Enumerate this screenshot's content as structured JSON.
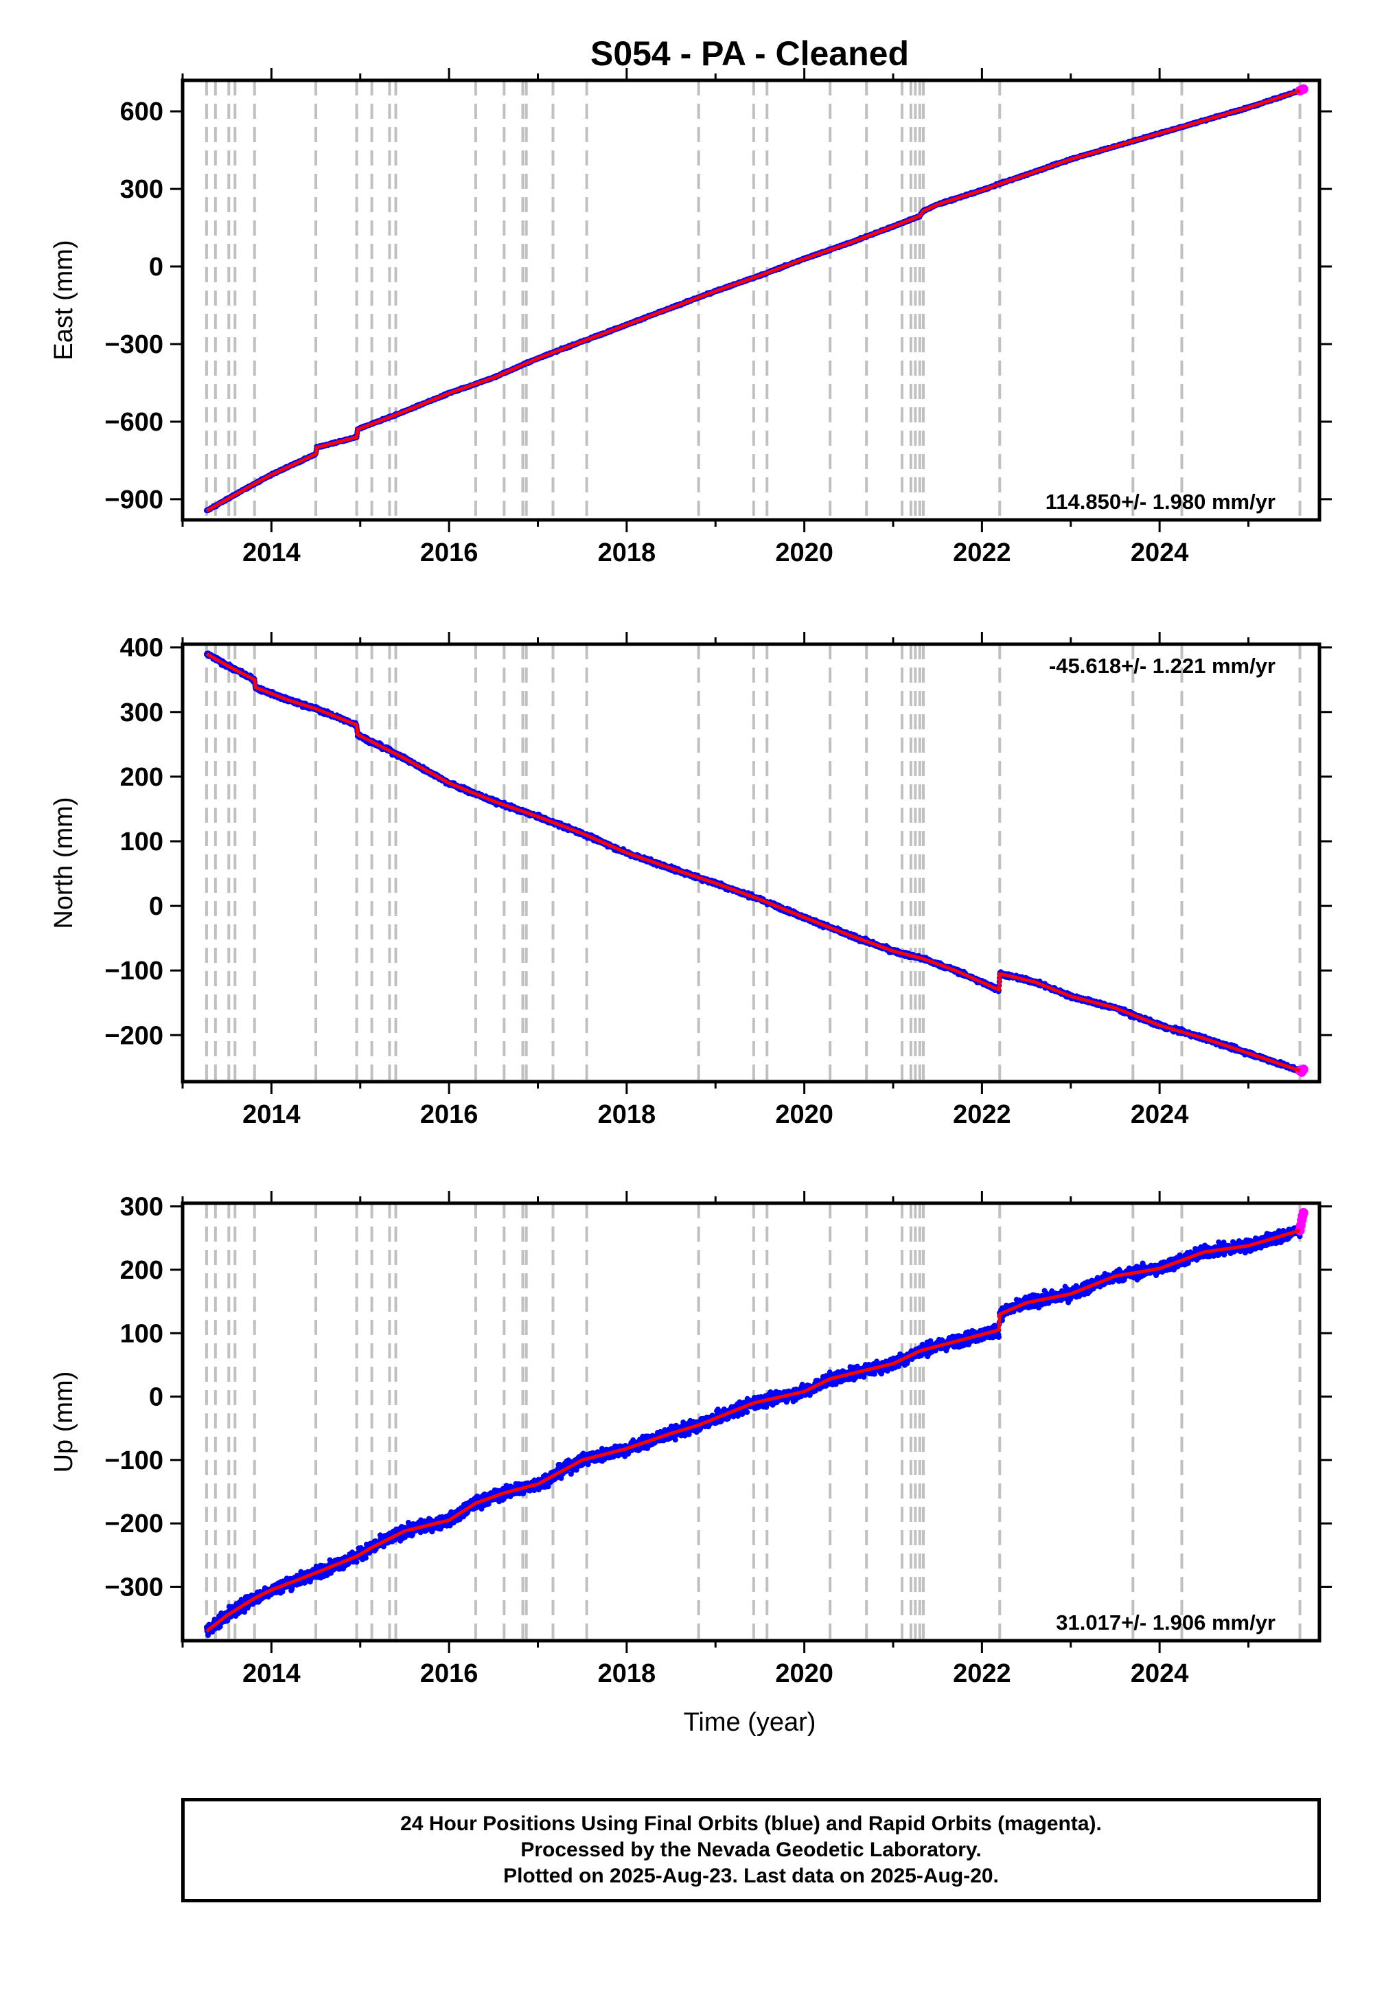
{
  "title": "S054  - PA - Cleaned",
  "xlabel": "Time (year)",
  "colors": {
    "final": "#0000ff",
    "rapid": "#ff00ff",
    "model": "#ff0000",
    "steps": "#c0c0c0"
  },
  "footer": {
    "line1": "24 Hour Positions Using Final Orbits (blue) and Rapid Orbits (magenta).",
    "line2": "Processed by the Nevada Geodetic Laboratory.",
    "line3": "Plotted on 2025-Aug-23. Last data on 2025-Aug-20."
  },
  "chart_data": {
    "type": "scatter",
    "xlim": [
      2013.0,
      2025.8
    ],
    "x_ticks": [
      2014,
      2016,
      2018,
      2020,
      2022,
      2024
    ],
    "x_tick_labels": [
      "2014",
      "2016",
      "2018",
      "2020",
      "2022",
      "2024"
    ],
    "step_epochs": [
      2013.27,
      2013.37,
      2013.52,
      2013.59,
      2013.81,
      2014.5,
      2014.96,
      2015.13,
      2015.33,
      2015.4,
      2016.3,
      2016.62,
      2016.83,
      2016.87,
      2017.17,
      2017.55,
      2018.81,
      2019.43,
      2019.58,
      2020.29,
      2020.7,
      2021.1,
      2021.2,
      2021.25,
      2021.3,
      2021.34,
      2022.2,
      2023.7,
      2024.25,
      2025.58
    ],
    "panels": [
      {
        "ylabel": "East (mm)",
        "ylim": [
          -980,
          720
        ],
        "y_ticks": [
          600,
          300,
          0,
          -300,
          -600,
          -900
        ],
        "y_tick_labels": [
          "600",
          "300",
          "0",
          "−300",
          "−600",
          "−900"
        ],
        "rate_label": "114.850+/- 1.980 mm/yr",
        "rate_position": "bottom-right",
        "noise_mm": 3,
        "x": [
          2013.27,
          2013.5,
          2013.81,
          2014.0,
          2014.5,
          2014.51,
          2014.96,
          2014.97,
          2015.5,
          2016.0,
          2016.5,
          2017.0,
          2017.5,
          2018.0,
          2018.5,
          2019.0,
          2019.5,
          2020.0,
          2020.5,
          2021.0,
          2021.3,
          2021.34,
          2021.5,
          2022.0,
          2022.2,
          2022.5,
          2023.0,
          2023.5,
          2024.0,
          2024.5,
          2025.0,
          2025.58
        ],
        "y": [
          -945,
          -900,
          -840,
          -805,
          -725,
          -700,
          -660,
          -630,
          -560,
          -490,
          -430,
          -355,
          -290,
          -225,
          -160,
          -95,
          -35,
          30,
          90,
          155,
          195,
          215,
          240,
          295,
          320,
          355,
          415,
          465,
          515,
          565,
          615,
          680
        ],
        "rapid_x": [
          2025.58,
          2025.6,
          2025.62
        ],
        "rapid_y": [
          680,
          683,
          686
        ]
      },
      {
        "ylabel": "North (mm)",
        "ylim": [
          -272,
          405
        ],
        "y_ticks": [
          400,
          300,
          200,
          100,
          0,
          -100,
          -200
        ],
        "y_tick_labels": [
          "400",
          "300",
          "200",
          "100",
          "0",
          "−100",
          "−200"
        ],
        "rate_label": "-45.618+/- 1.221 mm/yr",
        "rate_position": "top-right",
        "noise_mm": 3,
        "x": [
          2013.27,
          2013.5,
          2013.81,
          2013.82,
          2014.2,
          2014.5,
          2014.96,
          2014.97,
          2015.5,
          2016.0,
          2016.5,
          2017.0,
          2017.5,
          2018.0,
          2018.5,
          2019.0,
          2019.5,
          2020.0,
          2020.5,
          2021.0,
          2021.34,
          2021.7,
          2022.19,
          2022.2,
          2022.6,
          2023.0,
          2023.5,
          2024.0,
          2024.5,
          2025.0,
          2025.58
        ],
        "y": [
          390,
          372,
          350,
          338,
          318,
          305,
          280,
          265,
          228,
          190,
          162,
          138,
          112,
          82,
          58,
          35,
          10,
          -18,
          -45,
          -70,
          -82,
          -100,
          -130,
          -105,
          -118,
          -140,
          -158,
          -185,
          -205,
          -228,
          -255
        ],
        "rapid_x": [
          2025.58,
          2025.6,
          2025.62
        ],
        "rapid_y": [
          -255,
          -257,
          -253
        ]
      },
      {
        "ylabel": "Up (mm)",
        "ylim": [
          -385,
          305
        ],
        "y_ticks": [
          300,
          200,
          100,
          0,
          -100,
          -200,
          -300
        ],
        "y_tick_labels": [
          "300",
          "200",
          "100",
          "0",
          "−100",
          "−200",
          "−300"
        ],
        "rate_label": "31.017+/- 1.906 mm/yr",
        "rate_position": "bottom-right",
        "noise_mm": 9,
        "x": [
          2013.27,
          2013.5,
          2013.81,
          2014.0,
          2014.5,
          2014.96,
          2015.13,
          2015.5,
          2016.0,
          2016.3,
          2016.62,
          2017.0,
          2017.5,
          2018.0,
          2018.5,
          2018.81,
          2019.43,
          2020.0,
          2020.29,
          2020.7,
          2021.0,
          2021.3,
          2022.19,
          2022.2,
          2022.5,
          2023.0,
          2023.5,
          2024.0,
          2024.5,
          2025.0,
          2025.58
        ],
        "y": [
          -370,
          -345,
          -318,
          -305,
          -278,
          -252,
          -238,
          -212,
          -195,
          -168,
          -152,
          -138,
          -100,
          -82,
          -58,
          -45,
          -10,
          8,
          28,
          42,
          52,
          72,
          105,
          130,
          148,
          162,
          190,
          202,
          228,
          238,
          262
        ],
        "rapid_x": [
          2025.58,
          2025.59,
          2025.6,
          2025.61,
          2025.62
        ],
        "rapid_y": [
          262,
          270,
          278,
          285,
          290
        ]
      }
    ]
  }
}
